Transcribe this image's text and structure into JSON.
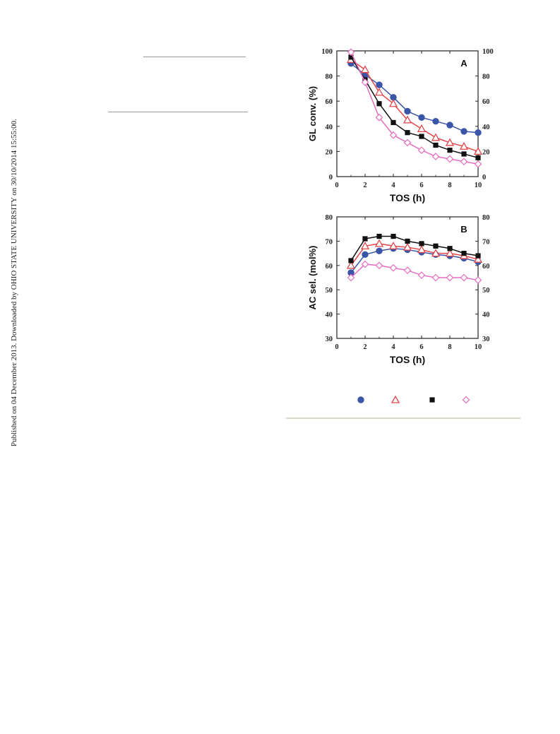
{
  "side_note": "Published on 04 December 2013. Downloaded by OHIO STATE UNIVERSITY on 30/10/2014 15:55:00.",
  "colors": {
    "series_blue": "#3b55a8",
    "series_red": "#e0474c",
    "series_black": "#111111",
    "series_pink": "#e36fc0"
  },
  "chart_data": [
    {
      "type": "line",
      "title": "",
      "panel_label": "A",
      "xlabel": "TOS (h)",
      "ylabel": "GL conv. (%)",
      "xlim": [
        0,
        10
      ],
      "ylim": [
        0,
        100
      ],
      "x_ticks": [
        0,
        2,
        4,
        6,
        8,
        10
      ],
      "y_ticks": [
        0,
        20,
        40,
        60,
        80,
        100
      ],
      "grid": false,
      "x": [
        1,
        2,
        3,
        4,
        5,
        6,
        7,
        8,
        9,
        10
      ],
      "series": [
        {
          "marker": "circle-filled",
          "color": "#3b55a8",
          "values": [
            90,
            81,
            73,
            63,
            52,
            47,
            44,
            41,
            36,
            35
          ]
        },
        {
          "marker": "triangle-open",
          "color": "#e0474c",
          "values": [
            93,
            85,
            67,
            58,
            45,
            38,
            31,
            27,
            24,
            20
          ]
        },
        {
          "marker": "square-filled",
          "color": "#111111",
          "values": [
            95,
            77,
            58,
            43,
            35,
            32,
            25,
            21,
            18,
            15
          ]
        },
        {
          "marker": "diamond-open",
          "color": "#e36fc0",
          "values": [
            99,
            75,
            47,
            33,
            27,
            21,
            16,
            14,
            12,
            10
          ]
        }
      ]
    },
    {
      "type": "line",
      "title": "",
      "panel_label": "B",
      "xlabel": "TOS (h)",
      "ylabel": "AC sel. (mol%)",
      "xlim": [
        0,
        10
      ],
      "ylim": [
        30,
        80
      ],
      "x_ticks": [
        0,
        2,
        4,
        6,
        8,
        10
      ],
      "y_ticks": [
        30,
        40,
        50,
        60,
        70,
        80
      ],
      "grid": false,
      "x": [
        1,
        2,
        3,
        4,
        5,
        6,
        7,
        8,
        9,
        10
      ],
      "series": [
        {
          "marker": "circle-filled",
          "color": "#3b55a8",
          "values": [
            57,
            64.5,
            66,
            67,
            66.5,
            65.5,
            64.5,
            64,
            63,
            61.5
          ]
        },
        {
          "marker": "triangle-open",
          "color": "#e0474c",
          "values": [
            60,
            68,
            69,
            68,
            67.5,
            66.5,
            65,
            65,
            64,
            62.5
          ]
        },
        {
          "marker": "square-filled",
          "color": "#111111",
          "values": [
            62,
            71,
            72,
            72,
            70,
            69,
            68,
            67,
            65,
            64
          ]
        },
        {
          "marker": "diamond-open",
          "color": "#e36fc0",
          "values": [
            55,
            60.5,
            60,
            59,
            58,
            56,
            55,
            55,
            55,
            54
          ]
        }
      ]
    }
  ],
  "legend": [
    {
      "marker": "circle-filled",
      "color": "#3b55a8"
    },
    {
      "marker": "triangle-open",
      "color": "#e0474c"
    },
    {
      "marker": "square-filled",
      "color": "#111111"
    },
    {
      "marker": "diamond-open",
      "color": "#e36fc0"
    }
  ]
}
